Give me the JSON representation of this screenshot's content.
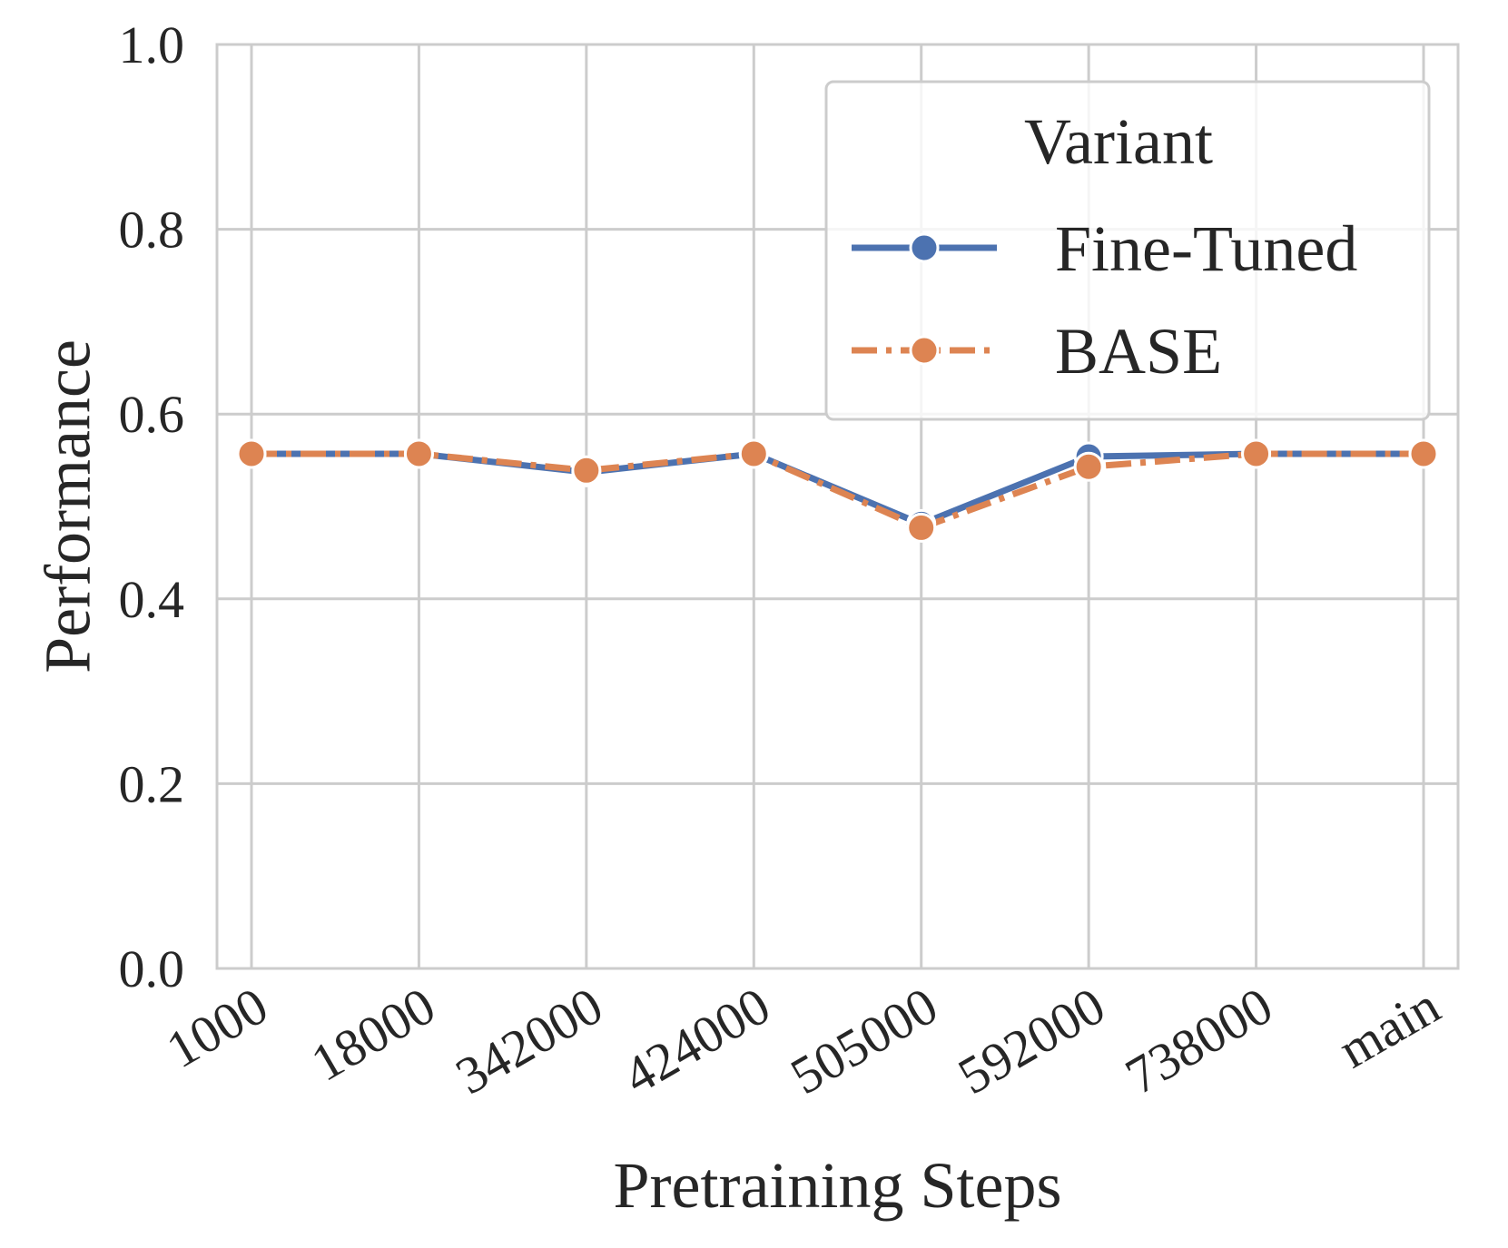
{
  "chart_data": {
    "type": "line",
    "title": "",
    "xlabel": "Pretraining Steps",
    "ylabel": "Performance",
    "categories": [
      "1000",
      "18000",
      "342000",
      "424000",
      "505000",
      "592000",
      "738000",
      "main"
    ],
    "ylim": [
      0.0,
      1.0
    ],
    "yticks": [
      "0.0",
      "0.2",
      "0.4",
      "0.6",
      "0.8",
      "1.0"
    ],
    "grid": true,
    "legend": {
      "title": "Variant",
      "position": "top-right"
    },
    "series": [
      {
        "name": "Fine-Tuned",
        "color": "#4c72b0",
        "line_style": "solid",
        "values": [
          0.557,
          0.557,
          0.537,
          0.557,
          0.481,
          0.554,
          0.557,
          0.557
        ]
      },
      {
        "name": "BASE",
        "color": "#dd8452",
        "line_style": "dashdot",
        "values": [
          0.557,
          0.557,
          0.539,
          0.557,
          0.477,
          0.543,
          0.557,
          0.557
        ]
      }
    ]
  }
}
